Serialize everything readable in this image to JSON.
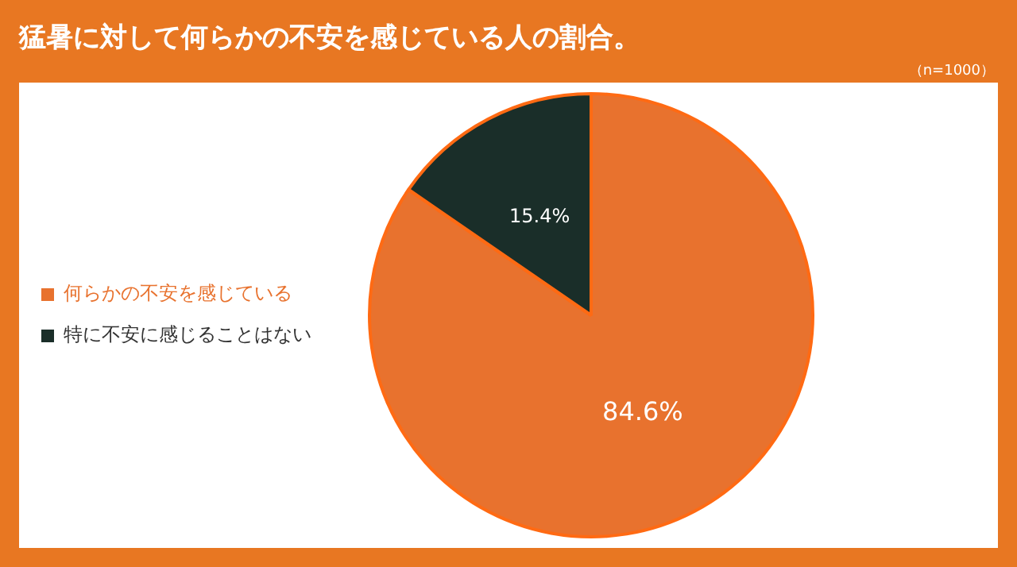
{
  "chart_data": {
    "type": "pie",
    "title": "猛暑に対して何らかの不安を感じている人の割合。",
    "subtitle": "（n=1000）",
    "categories": [
      "何らかの不安を感じている",
      "特に不安に感じることはない"
    ],
    "values": [
      84.6,
      15.4
    ],
    "colors": [
      "#e8722e",
      "#1a2e29"
    ],
    "value_labels": [
      "84.6%",
      "15.4%"
    ],
    "legend": "left"
  }
}
